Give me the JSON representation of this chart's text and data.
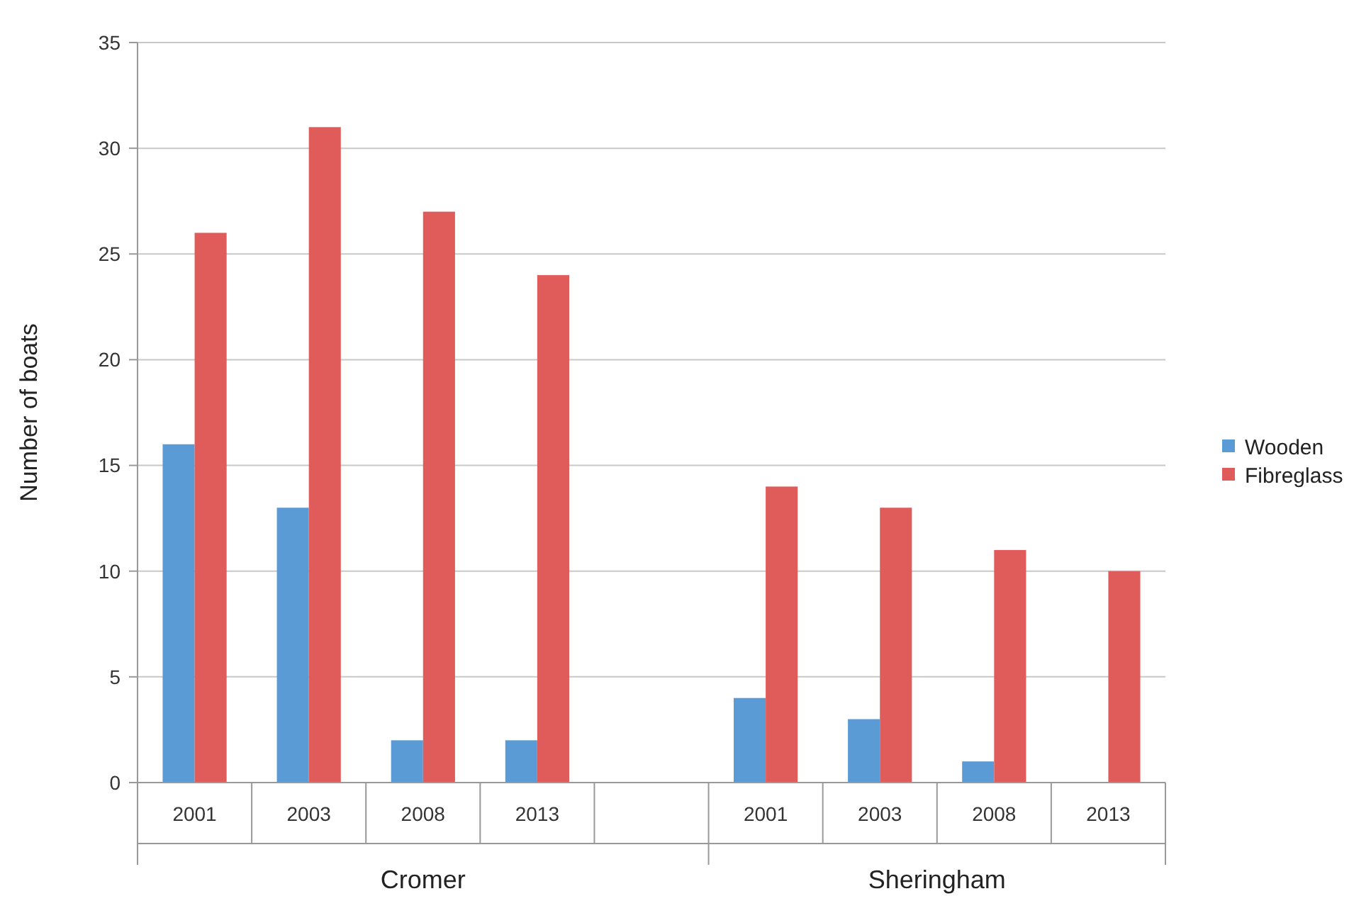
{
  "chart_data": {
    "type": "bar",
    "ylabel": "Number of boats",
    "categories": [
      "2001",
      "2003",
      "2008",
      "2013",
      null,
      "2001",
      "2003",
      "2008",
      "2013"
    ],
    "series": [
      {
        "name": "Wooden",
        "color": "#5b9bd5",
        "values": [
          16,
          13,
          2,
          2,
          null,
          4,
          3,
          1,
          0
        ]
      },
      {
        "name": "Fibreglass",
        "color": "#e05c5a",
        "values": [
          26,
          31,
          27,
          24,
          null,
          14,
          13,
          11,
          10
        ]
      }
    ],
    "ylim": [
      0,
      35
    ],
    "yticks": [
      0,
      5,
      10,
      15,
      20,
      25,
      30,
      35
    ],
    "grid": "y",
    "legend": "right",
    "annotations": [
      "Cromer",
      "Sheringham"
    ]
  }
}
